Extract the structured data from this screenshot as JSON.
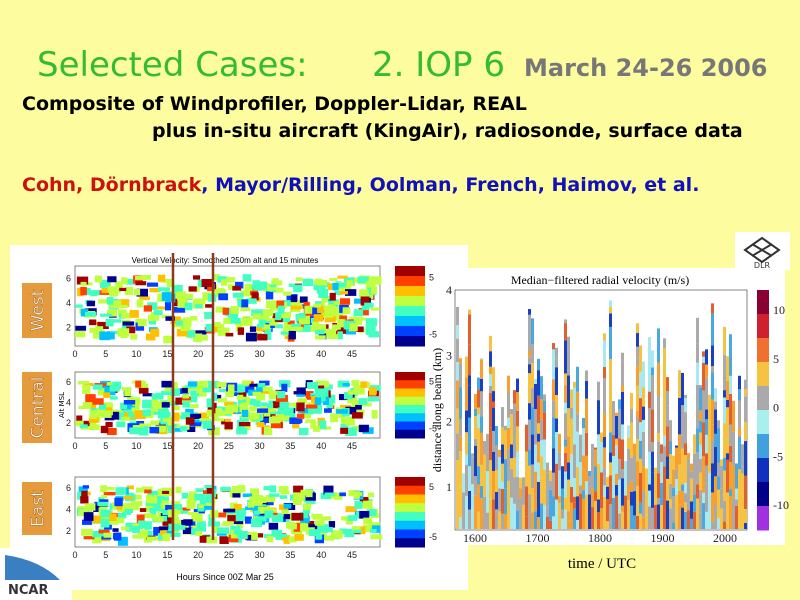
{
  "header": {
    "title": "Selected Cases:",
    "case": "2. IOP 6",
    "dates": "March 24-26 2006"
  },
  "description": [
    "Composite of Windprofiler, Doppler-Lidar, REAL",
    "plus in-situ aircraft (KingAir), radiosonde, surface data"
  ],
  "authors": {
    "red": "Cohn, Dörnbrack",
    "blue": ", Mayor/Rilling, Oolman, French, Haimov, et al."
  },
  "left_figure": {
    "title": "Vertical Velocity: Smoothed 250m alt and 15 minutes",
    "panels": [
      {
        "label": "West"
      },
      {
        "label": "Central",
        "y_label": "Alt MSL"
      },
      {
        "label": "East"
      }
    ],
    "xticks": [
      0,
      5,
      10,
      15,
      20,
      25,
      30,
      35,
      40,
      45
    ],
    "yticks": [
      2,
      4,
      6
    ],
    "colorbar_ticks": [
      5,
      -5
    ],
    "x_label": "Hours Since 00Z Mar 25"
  },
  "right_figure": {
    "title": "Median−filtered radial velocity (m/s)",
    "y_label": "distance along beam (km)",
    "yticks": [
      1,
      2,
      3,
      4
    ],
    "xticks": [
      1600,
      1700,
      1800,
      1900,
      2000
    ],
    "colorbar_ticks": [
      10,
      5,
      0,
      -5,
      -10
    ],
    "x_label": "time / UTC"
  },
  "logos": {
    "dlr": "DLR",
    "ncar": "NCAR"
  }
}
